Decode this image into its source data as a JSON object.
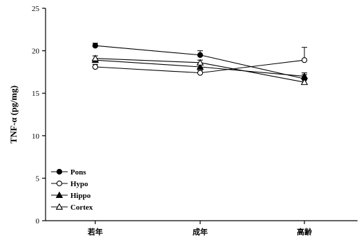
{
  "chart_data": {
    "type": "line",
    "title": "",
    "xlabel": "",
    "ylabel": "TNF-α (pg/mg)",
    "categories": [
      "若年",
      "成年",
      "高齢"
    ],
    "ylim": [
      0,
      25
    ],
    "yticks": [
      0,
      5,
      10,
      15,
      20,
      25
    ],
    "legend_position": "bottom-left",
    "grid": false,
    "series": [
      {
        "name": "Pons",
        "marker": "filled-circle",
        "values": [
          20.6,
          19.5,
          16.7
        ],
        "errors": [
          0.3,
          0.5,
          0.5
        ]
      },
      {
        "name": "Hypo",
        "marker": "open-circle",
        "values": [
          18.1,
          17.4,
          18.9
        ],
        "errors": [
          0.3,
          0.3,
          1.5
        ]
      },
      {
        "name": "Hippo",
        "marker": "filled-triangle",
        "values": [
          18.9,
          18.1,
          17.0
        ],
        "errors": [
          0.5,
          0.4,
          0.4
        ]
      },
      {
        "name": "Cortex",
        "marker": "open-triangle",
        "values": [
          19.1,
          18.6,
          16.3
        ],
        "errors": [
          0.3,
          0.3,
          0.3
        ]
      }
    ]
  }
}
